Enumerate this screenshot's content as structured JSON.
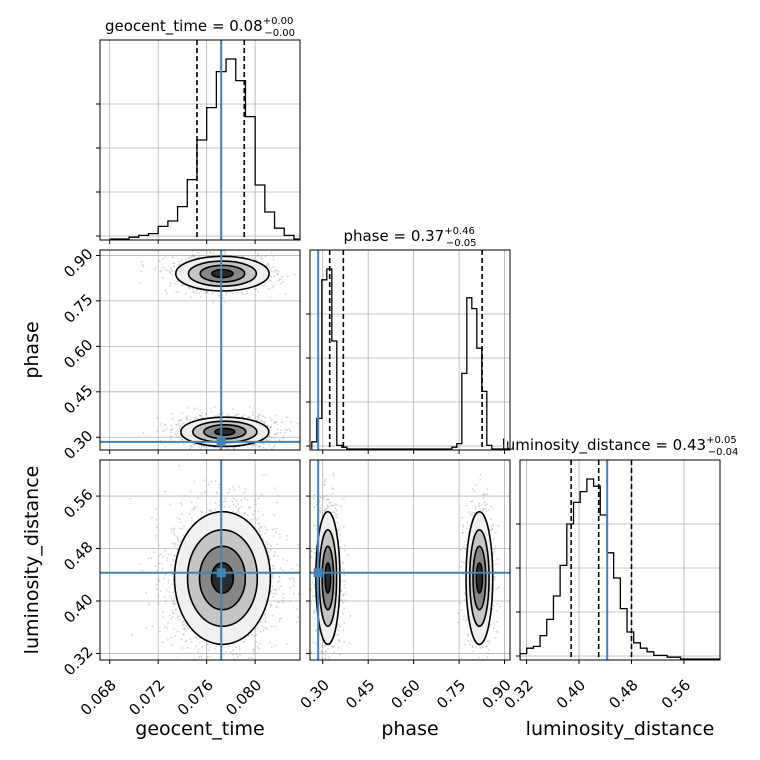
{
  "chart_data": {
    "type": "corner",
    "parameters": [
      "geocent_time",
      "phase",
      "luminosity_distance"
    ],
    "truths": {
      "geocent_time": 0.0772,
      "phase": 0.285,
      "luminosity_distance": 0.443
    },
    "titles": {
      "geocent_time": {
        "name": "geocent_time",
        "value": "0.08",
        "plus": "+0.00",
        "minus": "−0.00"
      },
      "phase": {
        "name": "phase",
        "value": "0.37",
        "plus": "+0.46",
        "minus": "−0.05"
      },
      "luminosity_distance": {
        "name": "luminosity_distance",
        "value": "0.43",
        "plus": "+0.05",
        "minus": "−0.04"
      }
    },
    "axis_labels": {
      "x": [
        "geocent_time",
        "phase",
        "luminosity_distance"
      ],
      "y": [
        "phase",
        "luminosity_distance"
      ]
    },
    "ranges": {
      "geocent_time": [
        0.0672,
        0.0837
      ],
      "phase": [
        0.258,
        0.918
      ],
      "luminosity_distance": [
        0.31,
        0.615
      ]
    },
    "ticks": {
      "geocent_time": [
        "0.068",
        "0.072",
        "0.076",
        "0.080"
      ],
      "phase": [
        "0.30",
        "0.45",
        "0.60",
        "0.75",
        "0.90"
      ],
      "luminosity_distance": [
        "0.32",
        "0.40",
        "0.48",
        "0.56"
      ]
    },
    "quantile_lines": {
      "geocent_time": [
        0.0752,
        0.0772,
        0.0791
      ],
      "phase": [
        0.323,
        0.368,
        0.826
      ],
      "luminosity_distance": [
        0.388,
        0.43,
        0.48
      ]
    },
    "histograms": {
      "geocent_time": {
        "start": 0.068,
        "width": 0.0008,
        "counts": [
          0,
          0,
          1,
          2,
          3,
          7,
          10,
          18,
          33,
          55,
          73,
          93,
          100,
          88,
          68,
          30,
          15,
          6,
          2,
          0
        ]
      },
      "phase": {
        "start": 0.264,
        "width": 0.0165,
        "counts": [
          4,
          17,
          94,
          100,
          60,
          2,
          1,
          0,
          0,
          0,
          0,
          0,
          0,
          0,
          0,
          0,
          0,
          0,
          0,
          0,
          0,
          0,
          0,
          0,
          0,
          0,
          0,
          0,
          1,
          3,
          42,
          84,
          78,
          56,
          32,
          2,
          0,
          0,
          0,
          0
        ]
      },
      "luminosity_distance": {
        "start": 0.31,
        "width": 0.0102,
        "counts": [
          3,
          6,
          7,
          13,
          22,
          35,
          52,
          75,
          87,
          93,
          100,
          96,
          80,
          59,
          45,
          28,
          15,
          9,
          6,
          4,
          2,
          2,
          1,
          1,
          0,
          0,
          0,
          0,
          0,
          0
        ]
      }
    },
    "scatter_modes": {
      "geocent_time_vs_phase": [
        {
          "cx": 0.0775,
          "cy": 0.318,
          "sx": 0.00165,
          "sy": 0.022,
          "n": 1100
        },
        {
          "cx": 0.0773,
          "cy": 0.84,
          "sx": 0.00175,
          "sy": 0.026,
          "n": 800
        }
      ],
      "geocent_time_vs_luminosity_distance": [
        {
          "cx": 0.0773,
          "cy": 0.435,
          "sx": 0.0018,
          "sy": 0.046,
          "n": 2000
        }
      ],
      "phase_vs_luminosity_distance": [
        {
          "cx": 0.317,
          "cy": 0.435,
          "sx": 0.018,
          "sy": 0.046,
          "n": 1000
        },
        {
          "cx": 0.817,
          "cy": 0.435,
          "sx": 0.02,
          "sy": 0.046,
          "n": 800
        }
      ]
    },
    "grid": true
  }
}
